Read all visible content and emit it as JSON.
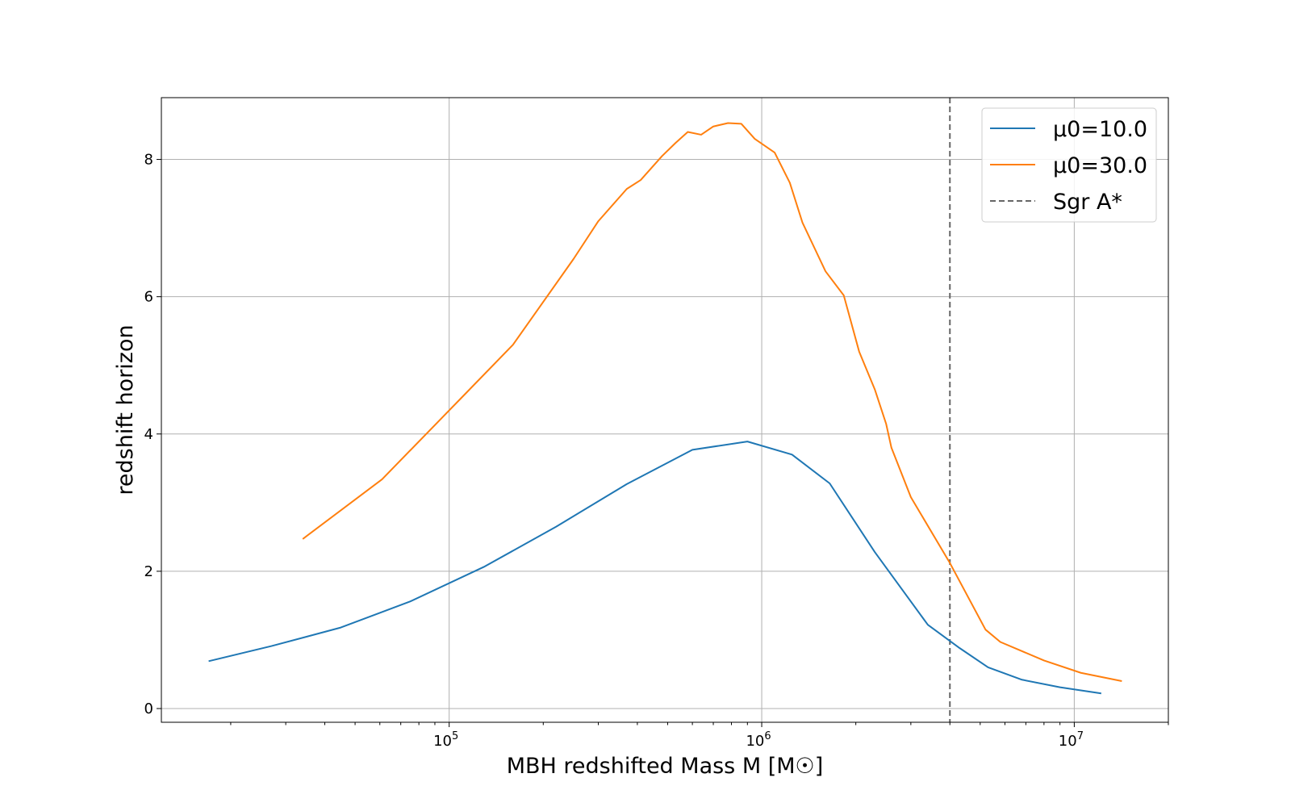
{
  "chart_data": {
    "type": "line",
    "xlabel": "MBH redshifted Mass M [M☉]",
    "ylabel": "redshift horizon",
    "xscale": "log",
    "xlim": [
      12000,
      20000000
    ],
    "ylim": [
      -0.2,
      8.9
    ],
    "x_ticks": [
      {
        "value": 100000,
        "base": "10",
        "exp": "5"
      },
      {
        "value": 1000000,
        "base": "10",
        "exp": "6"
      },
      {
        "value": 10000000,
        "base": "10",
        "exp": "7"
      }
    ],
    "y_ticks": [
      {
        "value": 0,
        "label": "0"
      },
      {
        "value": 2,
        "label": "2"
      },
      {
        "value": 4,
        "label": "4"
      },
      {
        "value": 6,
        "label": "6"
      },
      {
        "value": 8,
        "label": "8"
      }
    ],
    "grid": true,
    "legend_position": "top-right",
    "series": [
      {
        "name": "μ0=10.0",
        "color": "#1f77b4",
        "points": [
          [
            17000,
            0.69
          ],
          [
            27000,
            0.91
          ],
          [
            45000,
            1.18
          ],
          [
            75000,
            1.56
          ],
          [
            130000,
            2.07
          ],
          [
            220000,
            2.65
          ],
          [
            370000,
            3.27
          ],
          [
            600000,
            3.77
          ],
          [
            900000,
            3.89
          ],
          [
            1250000,
            3.7
          ],
          [
            1650000,
            3.28
          ],
          [
            2300000,
            2.28
          ],
          [
            3400000,
            1.22
          ],
          [
            4300000,
            0.88
          ],
          [
            5300000,
            0.6
          ],
          [
            6800000,
            0.42
          ],
          [
            9000000,
            0.31
          ],
          [
            12200000,
            0.22
          ]
        ]
      },
      {
        "name": "μ0=30.0",
        "color": "#ff7f0e",
        "points": [
          [
            34000,
            2.47
          ],
          [
            61000,
            3.34
          ],
          [
            108000,
            4.5
          ],
          [
            160000,
            5.3
          ],
          [
            250000,
            6.55
          ],
          [
            300000,
            7.1
          ],
          [
            370000,
            7.57
          ],
          [
            410000,
            7.7
          ],
          [
            480000,
            8.05
          ],
          [
            530000,
            8.24
          ],
          [
            580000,
            8.4
          ],
          [
            640000,
            8.36
          ],
          [
            700000,
            8.48
          ],
          [
            780000,
            8.53
          ],
          [
            860000,
            8.52
          ],
          [
            950000,
            8.3
          ],
          [
            1100000,
            8.1
          ],
          [
            1230000,
            7.66
          ],
          [
            1350000,
            7.08
          ],
          [
            1600000,
            6.37
          ],
          [
            1830000,
            6.02
          ],
          [
            2050000,
            5.2
          ],
          [
            2300000,
            4.65
          ],
          [
            2500000,
            4.15
          ],
          [
            2600000,
            3.8
          ],
          [
            3000000,
            3.08
          ],
          [
            4000000,
            2.12
          ],
          [
            5200000,
            1.15
          ],
          [
            5800000,
            0.97
          ],
          [
            8000000,
            0.7
          ],
          [
            10500000,
            0.52
          ],
          [
            14200000,
            0.4
          ]
        ]
      }
    ],
    "reference_lines": [
      {
        "name": "Sgr A*",
        "x": 4000000,
        "color": "#666666",
        "style": "dashed"
      }
    ]
  }
}
